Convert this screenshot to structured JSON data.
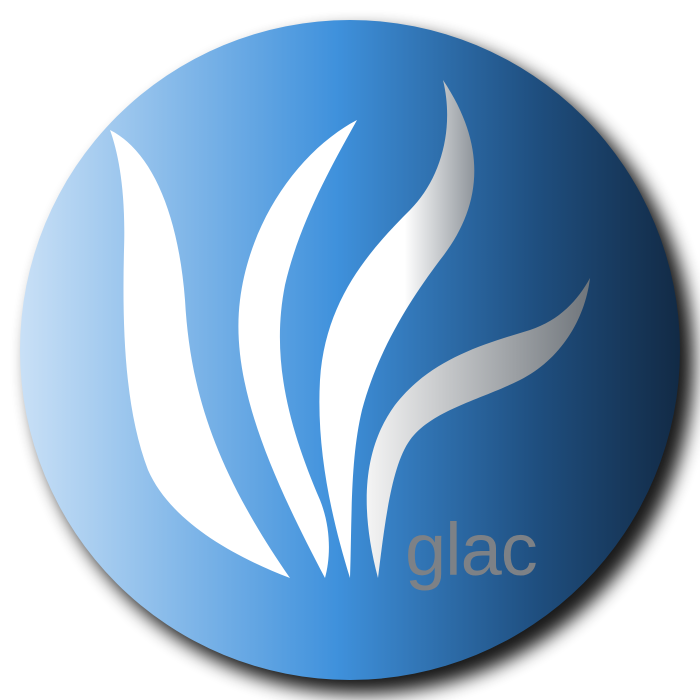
{
  "logo": {
    "wordmark": "glac",
    "colors": {
      "sphere_light": "#c9e0f6",
      "sphere_mid": "#3f91dc",
      "sphere_dark": "#122a45",
      "leaf": "#ffffff",
      "wordmark": "#7d8186",
      "shadow": "#000000"
    },
    "icon": "leaf-sphere-logo-icon"
  }
}
